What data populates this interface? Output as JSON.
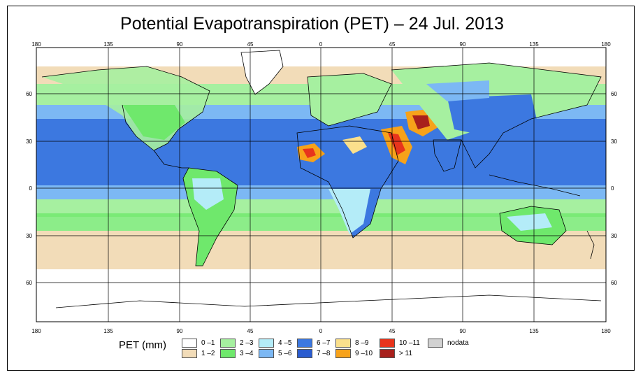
{
  "title": "Potential Evapotranspiration (PET) – 24 Jul. 2013",
  "lon_ticks": [
    "180",
    "135",
    "90",
    "45",
    "0",
    "45",
    "90",
    "135",
    "180"
  ],
  "lat_ticks_left": [
    "60",
    "30",
    "0",
    "30",
    "60"
  ],
  "lat_ticks_right": [
    "60",
    "30",
    "0",
    "30",
    "60"
  ],
  "legend": {
    "title": "PET (mm)",
    "items": [
      {
        "label": "0 –1",
        "color": "#ffffff"
      },
      {
        "label": "1 –2",
        "color": "#f2dcb8"
      },
      {
        "label": "2 –3",
        "color": "#a6f0a0"
      },
      {
        "label": "3 –4",
        "color": "#6fe86c"
      },
      {
        "label": "4 –5",
        "color": "#b4ecf8"
      },
      {
        "label": "5 –6",
        "color": "#7cb8f4"
      },
      {
        "label": "6 –7",
        "color": "#3c78e0"
      },
      {
        "label": "7 –8",
        "color": "#2a5cd0"
      },
      {
        "label": "8 –9",
        "color": "#fbe08c"
      },
      {
        "label": "9 –10",
        "color": "#f7a21a"
      },
      {
        "label": "10 –11",
        "color": "#e8341c"
      },
      {
        "label": "> 11",
        "color": "#a8201c"
      },
      {
        "label": "nodata",
        "color": "#d2d2d2"
      }
    ]
  }
}
